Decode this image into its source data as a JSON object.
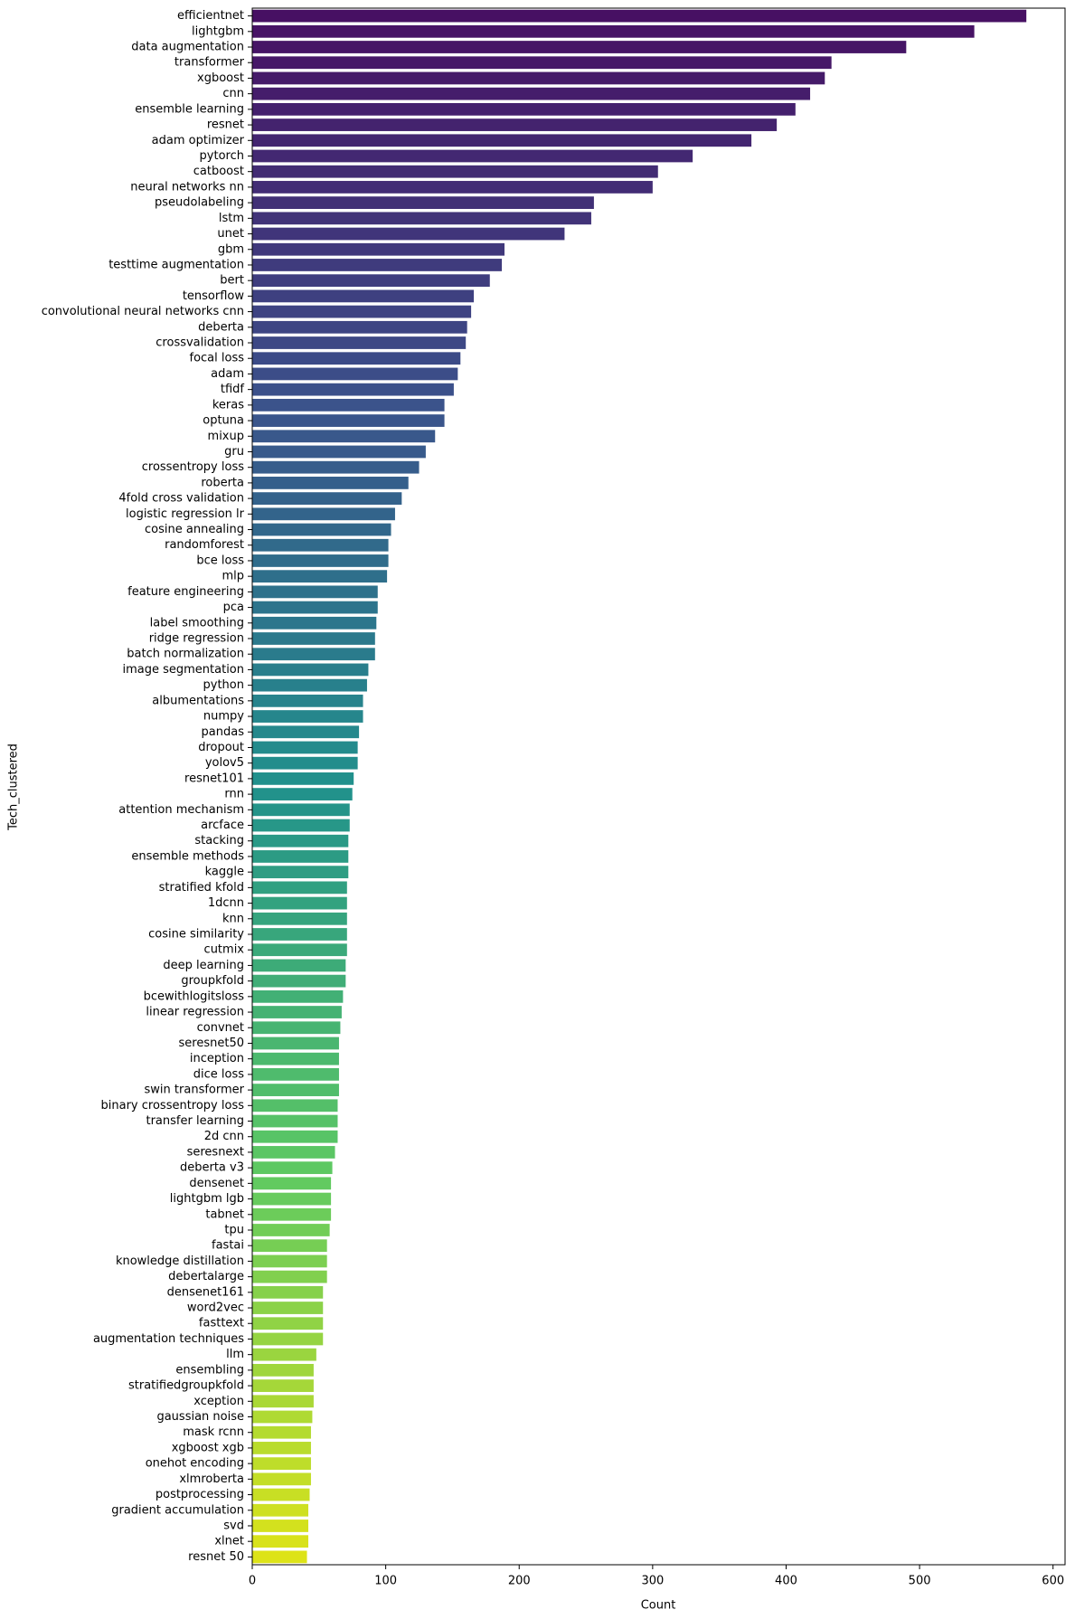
{
  "chart_data": {
    "type": "barh",
    "xlabel": "Count",
    "ylabel": "Tech_clustered",
    "categories": [
      "efficientnet",
      "lightgbm",
      "data augmentation",
      "transformer",
      "xgboost",
      "cnn",
      "ensemble learning",
      "resnet",
      "adam optimizer",
      "pytorch",
      "catboost",
      "neural networks nn",
      "pseudolabeling",
      "lstm",
      "unet",
      "gbm",
      "testtime augmentation",
      "bert",
      "tensorflow",
      "convolutional neural networks cnn",
      "deberta",
      "crossvalidation",
      "focal loss",
      "adam",
      "tfidf",
      "keras",
      "optuna",
      "mixup",
      "gru",
      "crossentropy loss",
      "roberta",
      "4fold cross validation",
      "logistic regression lr",
      "cosine annealing",
      "randomforest",
      "bce loss",
      "mlp",
      "feature engineering",
      "pca",
      "label smoothing",
      "ridge regression",
      "batch normalization",
      "image segmentation",
      "python",
      "albumentations",
      "numpy",
      "pandas",
      "dropout",
      "yolov5",
      "resnet101",
      "rnn",
      "attention mechanism",
      "arcface",
      "stacking",
      "ensemble methods",
      "kaggle",
      "stratified kfold",
      "1dcnn",
      "knn",
      "cosine similarity",
      "cutmix",
      "deep learning",
      "groupkfold",
      "bcewithlogitsloss",
      "linear regression",
      "convnet",
      "seresnet50",
      "inception",
      "dice loss",
      "swin transformer",
      "binary crossentropy loss",
      "transfer learning",
      "2d cnn",
      "seresnext",
      "deberta v3",
      "densenet",
      "lightgbm lgb",
      "tabnet",
      "tpu",
      "fastai",
      "knowledge distillation",
      "debertalarge",
      "densenet161",
      "word2vec",
      "fasttext",
      "augmentation techniques",
      "llm",
      "ensembling",
      "stratifiedgroupkfold",
      "xception",
      "gaussian noise",
      "mask rcnn",
      "xgboost xgb",
      "onehot encoding",
      "xlmroberta",
      "postprocessing",
      "gradient accumulation",
      "svd",
      "xlnet",
      "resnet 50"
    ],
    "values": [
      580,
      541,
      490,
      434,
      429,
      418,
      407,
      393,
      374,
      330,
      304,
      300,
      256,
      254,
      234,
      189,
      187,
      178,
      166,
      164,
      161,
      160,
      156,
      154,
      151,
      144,
      144,
      137,
      130,
      125,
      117,
      112,
      107,
      104,
      102,
      102,
      101,
      94,
      94,
      93,
      92,
      92,
      87,
      86,
      83,
      83,
      80,
      79,
      79,
      76,
      75,
      73,
      73,
      72,
      72,
      72,
      71,
      71,
      71,
      71,
      71,
      70,
      70,
      68,
      67,
      66,
      65,
      65,
      65,
      65,
      64,
      64,
      64,
      62,
      60,
      59,
      59,
      59,
      58,
      56,
      56,
      56,
      53,
      53,
      53,
      53,
      48,
      46,
      46,
      46,
      45,
      44,
      44,
      44,
      44,
      43,
      42,
      42,
      42,
      41
    ],
    "palette": [
      "#471063",
      "#3b528b",
      "#21918c",
      "#5ec962",
      "#dde318"
    ],
    "xlim": [
      0,
      609
    ],
    "xticks": [
      0,
      100,
      200,
      300,
      400,
      500,
      600
    ]
  }
}
